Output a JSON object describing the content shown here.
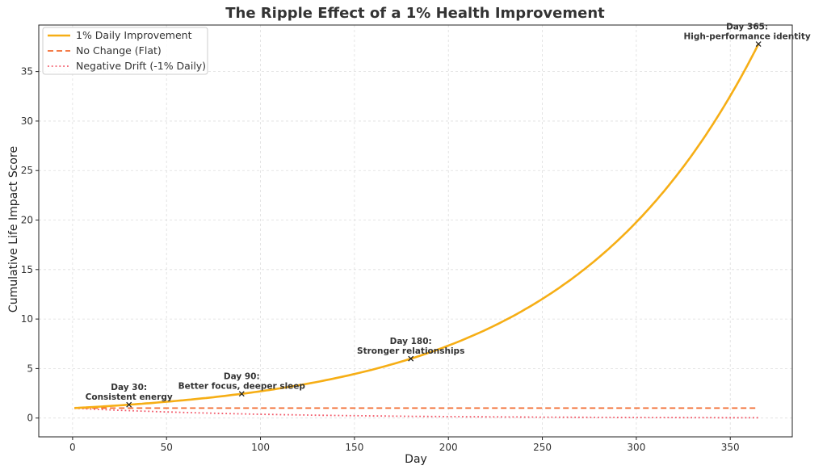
{
  "chart_data": {
    "type": "line",
    "title": "The Ripple Effect of a 1% Health Improvement",
    "xlabel": "Day",
    "ylabel": "Cumulative Life Impact Score",
    "xlim": [
      -18,
      383
    ],
    "ylim": [
      -1.9,
      39.7
    ],
    "xticks": [
      "0",
      "50",
      "100",
      "150",
      "200",
      "250",
      "300",
      "350"
    ],
    "yticks": [
      "0",
      "5",
      "10",
      "15",
      "20",
      "25",
      "30",
      "35"
    ],
    "grid": true,
    "legend_position": "top-left",
    "series": [
      {
        "name": "1% Daily Improvement",
        "color": "#f6ae15",
        "style": "solid",
        "x": [
          1,
          25,
          50,
          75,
          100,
          125,
          150,
          175,
          200,
          225,
          250,
          275,
          300,
          325,
          350,
          365
        ],
        "y": [
          1.01,
          1.28,
          1.64,
          2.11,
          2.7,
          3.46,
          4.45,
          5.7,
          7.32,
          9.39,
          12.03,
          15.44,
          19.79,
          25.38,
          32.55,
          37.78
        ]
      },
      {
        "name": "No Change (Flat)",
        "color": "#f26a2e",
        "style": "dashed",
        "x": [
          1,
          365
        ],
        "y": [
          1,
          1
        ]
      },
      {
        "name": "Negative Drift (-1% Daily)",
        "color": "#f25a6a",
        "style": "dotted",
        "x": [
          1,
          25,
          50,
          75,
          100,
          125,
          150,
          175,
          200,
          225,
          250,
          275,
          300,
          325,
          350,
          365
        ],
        "y": [
          0.99,
          0.78,
          0.61,
          0.47,
          0.37,
          0.28,
          0.22,
          0.17,
          0.13,
          0.1,
          0.08,
          0.06,
          0.05,
          0.04,
          0.03,
          0.03
        ]
      }
    ],
    "annotations": [
      {
        "x": 30,
        "y": 1.35,
        "lines": [
          "Day 30:",
          "Consistent energy"
        ]
      },
      {
        "x": 90,
        "y": 2.45,
        "lines": [
          "Day 90:",
          "Better focus, deeper sleep"
        ]
      },
      {
        "x": 180,
        "y": 6.0,
        "lines": [
          "Day 180:",
          "Stronger relationships"
        ]
      },
      {
        "x": 365,
        "y": 37.78,
        "lines": [
          "Day 365:",
          "High-performance identity"
        ]
      }
    ]
  }
}
